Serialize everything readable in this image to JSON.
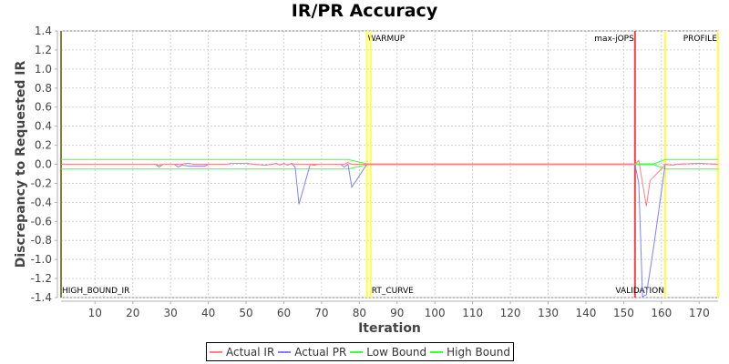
{
  "title": "IR/PR Accuracy",
  "legend": [
    {
      "label": "Actual IR",
      "color": "#ff8080"
    },
    {
      "label": "Actual PR",
      "color": "#8080ff"
    },
    {
      "label": "Low Bound",
      "color": "#40ff40"
    },
    {
      "label": "High Bound",
      "color": "#40ff40"
    }
  ],
  "chart_data": {
    "type": "line",
    "title": "IR/PR Accuracy",
    "xlabel": "Iteration",
    "ylabel": "Discrepancy to Requested IR",
    "xlim": [
      1,
      175
    ],
    "ylim": [
      -1.4,
      1.4
    ],
    "x_ticks": [
      10,
      20,
      30,
      40,
      50,
      60,
      70,
      80,
      90,
      100,
      110,
      120,
      130,
      140,
      150,
      160,
      170
    ],
    "y_ticks": [
      1.4,
      1.2,
      1.0,
      0.8,
      0.6,
      0.4,
      0.2,
      0.0,
      -0.2,
      -0.4,
      -0.6,
      -0.8,
      -1.0,
      -1.2,
      -1.4
    ],
    "y_tick_labels": [
      "1.4",
      "1.2",
      "1.0",
      "0.8",
      "0.6",
      "0.4",
      "0.2",
      "0.0",
      "-0.2",
      "-0.4",
      "-0.6",
      "-0.8",
      "-1.0",
      "-1.2",
      "-1.4"
    ],
    "grid": true,
    "legend_position": "bottom",
    "series": [
      {
        "name": "Actual IR",
        "color": "#ff8080",
        "points": [
          [
            1,
            0.0
          ],
          [
            26,
            0.0
          ],
          [
            27,
            -0.01
          ],
          [
            28,
            0.0
          ],
          [
            33,
            0.0
          ],
          [
            34,
            0.01
          ],
          [
            35,
            0.01
          ],
          [
            36,
            0.0
          ],
          [
            45,
            0.0
          ],
          [
            46,
            0.01
          ],
          [
            50,
            0.01
          ],
          [
            52,
            0.0
          ],
          [
            55,
            -0.01
          ],
          [
            57,
            0.0
          ],
          [
            58,
            0.01
          ],
          [
            59,
            -0.01
          ],
          [
            60,
            0.01
          ],
          [
            61,
            -0.01
          ],
          [
            62,
            0.01
          ],
          [
            63,
            0.0
          ],
          [
            76,
            0.0
          ],
          [
            77,
            0.02
          ],
          [
            78,
            0.0
          ],
          [
            82,
            0.0
          ],
          [
            153,
            0.0
          ],
          [
            154,
            0.04
          ],
          [
            156,
            -0.44
          ],
          [
            157,
            -0.17
          ],
          [
            160,
            -0.05
          ],
          [
            161,
            0.0
          ],
          [
            163,
            -0.01
          ],
          [
            164,
            0.0
          ],
          [
            170,
            0.01
          ],
          [
            175,
            0.0
          ]
        ]
      },
      {
        "name": "Actual PR",
        "color": "#8080ff",
        "points": [
          [
            1,
            0.0
          ],
          [
            26,
            0.0
          ],
          [
            27,
            -0.03
          ],
          [
            28,
            0.0
          ],
          [
            31,
            0.0
          ],
          [
            32,
            -0.03
          ],
          [
            33,
            -0.01
          ],
          [
            35,
            -0.02
          ],
          [
            39,
            -0.02
          ],
          [
            40,
            0.0
          ],
          [
            45,
            0.0
          ],
          [
            46,
            0.01
          ],
          [
            50,
            0.01
          ],
          [
            52,
            0.0
          ],
          [
            55,
            -0.01
          ],
          [
            57,
            0.0
          ],
          [
            58,
            0.01
          ],
          [
            59,
            -0.01
          ],
          [
            60,
            0.01
          ],
          [
            61,
            -0.01
          ],
          [
            62,
            0.01
          ],
          [
            63,
            -0.03
          ],
          [
            64,
            -0.42
          ],
          [
            67,
            0.0
          ],
          [
            68,
            -0.01
          ],
          [
            69,
            0.0
          ],
          [
            75,
            0.0
          ],
          [
            76,
            -0.03
          ],
          [
            77,
            0.0
          ],
          [
            78,
            -0.24
          ],
          [
            82,
            0.0
          ],
          [
            153,
            0.0
          ],
          [
            154,
            -0.2
          ],
          [
            155,
            -1.39
          ],
          [
            156,
            -1.37
          ],
          [
            158,
            -0.85
          ],
          [
            161,
            0.0
          ],
          [
            163,
            -0.01
          ],
          [
            164,
            0.0
          ],
          [
            170,
            0.01
          ],
          [
            175,
            0.0
          ]
        ]
      },
      {
        "name": "Low Bound",
        "color": "#40ff40",
        "points": [
          [
            1,
            -0.05
          ],
          [
            77,
            -0.05
          ],
          [
            82,
            -0.005
          ],
          [
            153,
            -0.005
          ],
          [
            158,
            -0.005
          ],
          [
            161,
            -0.05
          ],
          [
            175,
            -0.05
          ]
        ]
      },
      {
        "name": "High Bound",
        "color": "#40ff40",
        "points": [
          [
            1,
            0.05
          ],
          [
            77,
            0.05
          ],
          [
            82,
            0.005
          ],
          [
            153,
            0.005
          ],
          [
            158,
            0.005
          ],
          [
            161,
            0.05
          ],
          [
            175,
            0.05
          ]
        ]
      }
    ],
    "markers": [
      {
        "label": "HIGH_BOUND_IR",
        "x": 1,
        "color": "#808040",
        "label_pos": "bottom"
      },
      {
        "label": "WARMUP",
        "x": 82,
        "color": "#ffff40",
        "label_pos": "top"
      },
      {
        "label": "RT_CURVE",
        "x": 83,
        "color": "#ffff40",
        "label_pos": "bottom"
      },
      {
        "label": "max-jOPS",
        "x": 153,
        "color": "#ff4040",
        "label_pos": "top",
        "label_align": "end"
      },
      {
        "label": "VALIDATION",
        "x": 161,
        "color": "#ffff40",
        "label_pos": "bottom",
        "label_align": "end"
      },
      {
        "label": "PROFILE",
        "x": 175,
        "color": "#ffff40",
        "label_pos": "top",
        "label_align": "end"
      }
    ]
  }
}
